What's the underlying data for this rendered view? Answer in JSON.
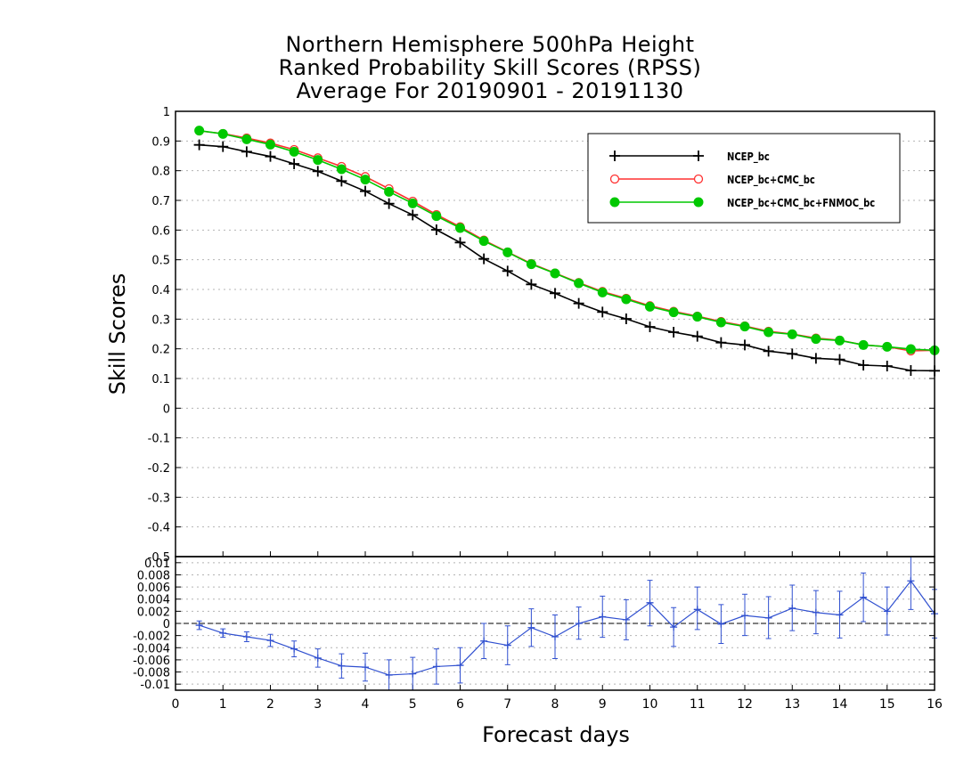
{
  "titles": [
    "Northern Hemisphere 500hPa Height",
    "Ranked Probability Skill Scores (RPSS)",
    "Average For 20190901 - 20191130"
  ],
  "chart_data": [
    {
      "type": "line",
      "ylabel": "Skill Scores",
      "xlim": [
        0,
        16
      ],
      "ylim": [
        -0.5,
        1
      ],
      "yticks": [
        "-0.5",
        "-0.4",
        "-0.3",
        "-0.2",
        "-0.1",
        "0",
        "0.1",
        "0.2",
        "0.3",
        "0.4",
        "0.5",
        "0.6",
        "0.7",
        "0.8",
        "0.9",
        "1"
      ],
      "grid": "dotted",
      "legend_position": "top-right",
      "x": [
        0.5,
        1,
        1.5,
        2,
        2.5,
        3,
        3.5,
        4,
        4.5,
        5,
        5.5,
        6,
        6.5,
        7,
        7.5,
        8,
        8.5,
        9,
        9.5,
        10,
        10.5,
        11,
        11.5,
        12,
        12.5,
        13,
        13.5,
        14,
        14.5,
        15,
        15.5,
        16
      ],
      "series": [
        {
          "name": "NCEP_bc",
          "color": "#000000",
          "marker": "plus",
          "values": [
            0.887,
            0.881,
            0.864,
            0.848,
            0.823,
            0.798,
            0.765,
            0.731,
            0.689,
            0.651,
            0.601,
            0.558,
            0.503,
            0.462,
            0.417,
            0.387,
            0.353,
            0.324,
            0.301,
            0.274,
            0.256,
            0.242,
            0.221,
            0.213,
            0.192,
            0.183,
            0.168,
            0.164,
            0.145,
            0.142,
            0.127,
            0.126
          ]
        },
        {
          "name": "NCEP_bc+CMC_bc",
          "color": "#ff3030",
          "marker": "open-circle",
          "values": [
            0.934,
            0.925,
            0.91,
            0.893,
            0.871,
            0.843,
            0.814,
            0.78,
            0.739,
            0.697,
            0.652,
            0.611,
            0.566,
            0.526,
            0.487,
            0.455,
            0.423,
            0.393,
            0.37,
            0.345,
            0.326,
            0.31,
            0.292,
            0.277,
            0.259,
            0.25,
            0.236,
            0.229,
            0.213,
            0.207,
            0.193,
            0.195
          ]
        },
        {
          "name": "NCEP_bc+CMC_bc+FNMOC_bc",
          "color": "#00c800",
          "marker": "filled-circle",
          "values": [
            0.935,
            0.924,
            0.906,
            0.888,
            0.864,
            0.836,
            0.805,
            0.77,
            0.729,
            0.69,
            0.647,
            0.607,
            0.563,
            0.525,
            0.485,
            0.454,
            0.421,
            0.39,
            0.367,
            0.342,
            0.323,
            0.308,
            0.289,
            0.275,
            0.256,
            0.249,
            0.233,
            0.228,
            0.213,
            0.207,
            0.199,
            0.195
          ]
        }
      ]
    },
    {
      "type": "line",
      "xlabel": "Forecast days",
      "xlim": [
        0,
        16
      ],
      "ylim": [
        -0.011,
        0.011
      ],
      "xticks": [
        "0",
        "1",
        "2",
        "3",
        "4",
        "5",
        "6",
        "7",
        "8",
        "9",
        "10",
        "11",
        "12",
        "13",
        "14",
        "15",
        "16"
      ],
      "yticks": [
        "-0.01",
        "-0.008",
        "-0.006",
        "-0.004",
        "-0.002",
        "0",
        "0.002",
        "0.004",
        "0.006",
        "0.008",
        "0.01"
      ],
      "grid": "dotted",
      "x": [
        0.5,
        1,
        1.5,
        2,
        2.5,
        3,
        3.5,
        4,
        4.5,
        5,
        5.5,
        6,
        6.5,
        7,
        7.5,
        8,
        8.5,
        9,
        9.5,
        10,
        10.5,
        11,
        11.5,
        12,
        12.5,
        13,
        13.5,
        14,
        14.5,
        15,
        15.5,
        16
      ],
      "series": [
        {
          "color": "#3050d0",
          "marker": "plus",
          "error_bars": true,
          "values": [
            -0.0003,
            -0.0016,
            -0.0022,
            -0.0028,
            -0.0042,
            -0.0057,
            -0.007,
            -0.0072,
            -0.0085,
            -0.0083,
            -0.0071,
            -0.0069,
            -0.0029,
            -0.0036,
            -0.0007,
            -0.0022,
            0.0,
            0.0011,
            0.0006,
            0.0034,
            -0.0006,
            0.0023,
            -0.0001,
            0.0013,
            0.0009,
            0.0025,
            0.0018,
            0.0014,
            0.0043,
            0.002,
            0.007,
            0.0016
          ],
          "lower": [
            -0.001,
            -0.0023,
            -0.003,
            -0.0038,
            -0.0055,
            -0.0072,
            -0.009,
            -0.0095,
            -0.011,
            -0.011,
            -0.01,
            -0.0098,
            -0.0058,
            -0.0068,
            -0.0038,
            -0.0058,
            -0.0026,
            -0.0023,
            -0.0027,
            -0.0004,
            -0.0038,
            -0.001,
            -0.0033,
            -0.002,
            -0.0025,
            -0.0012,
            -0.0017,
            -0.0024,
            0.0003,
            -0.0019,
            0.0023,
            -0.0024
          ],
          "upper": [
            0.0004,
            -0.0009,
            -0.0014,
            -0.0018,
            -0.0029,
            -0.0042,
            -0.005,
            -0.0049,
            -0.006,
            -0.0056,
            -0.0042,
            -0.004,
            0.0,
            -0.0004,
            0.0024,
            0.0014,
            0.0027,
            0.0045,
            0.0039,
            0.0071,
            0.0026,
            0.006,
            0.0031,
            0.0048,
            0.0044,
            0.0063,
            0.0054,
            0.0053,
            0.0083,
            0.006,
            0.011,
            0.0056
          ]
        }
      ]
    }
  ]
}
